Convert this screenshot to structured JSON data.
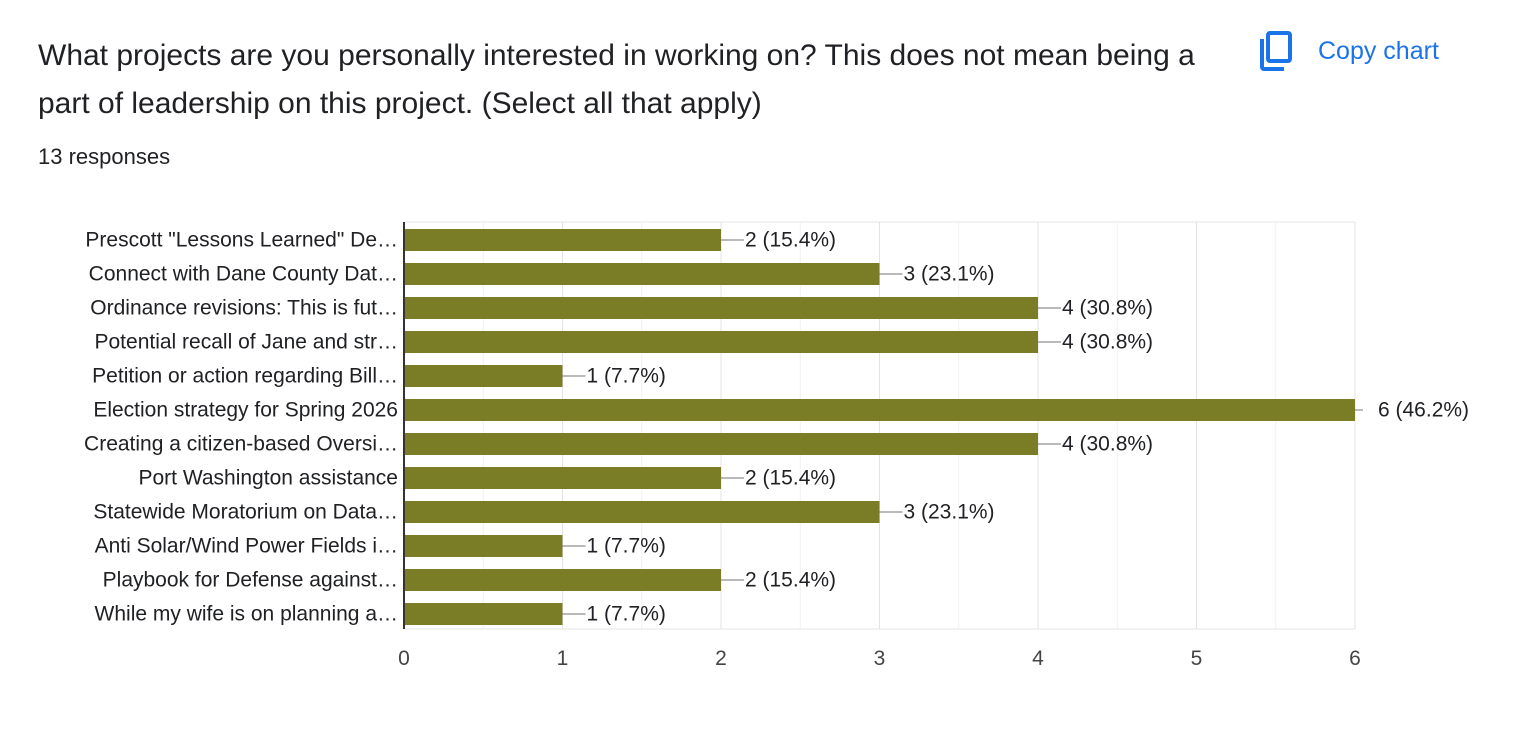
{
  "question": {
    "title": "What projects are you personally interested in working on? This does not mean being a part of leadership on this project. (Select all that apply)",
    "responses": "13 responses"
  },
  "toolbar": {
    "copy_label": "Copy chart",
    "copy_icon": "copy-icon"
  },
  "colors": {
    "bar": "#7b7c26",
    "accent": "#1a73e8",
    "grid": "#e6e6e6"
  },
  "chart_data": {
    "type": "bar",
    "orientation": "horizontal",
    "categories": [
      "Prescott \"Lessons Learned\" De…",
      "Connect with Dane County Dat…",
      "Ordinance revisions: This is fut…",
      "Potential recall of Jane and str…",
      "Petition or action regarding Bill…",
      "Election strategy for Spring 2026",
      "Creating a citizen-based Oversi…",
      "Port Washington assistance",
      "Statewide Moratorium on Data…",
      "Anti Solar/Wind Power Fields i…",
      "Playbook for Defense against…",
      "While my wife is on planning a…"
    ],
    "values": [
      2,
      3,
      4,
      4,
      1,
      6,
      4,
      2,
      3,
      1,
      2,
      1
    ],
    "labels": [
      "2 (15.4%)",
      "3 (23.1%)",
      "4 (30.8%)",
      "4 (30.8%)",
      "1 (7.7%)",
      "6 (46.2%)",
      "4 (30.8%)",
      "2 (15.4%)",
      "3 (23.1%)",
      "1 (7.7%)",
      "2 (15.4%)",
      "1 (7.7%)"
    ],
    "xticks": [
      "0",
      "1",
      "2",
      "3",
      "4",
      "5",
      "6"
    ],
    "xlim": [
      0,
      6
    ],
    "grid": true,
    "legend": "none"
  }
}
